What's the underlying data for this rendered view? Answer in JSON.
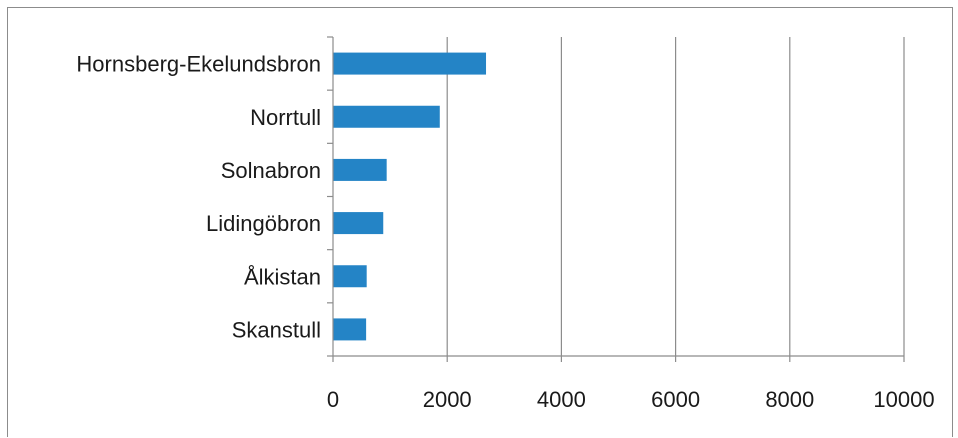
{
  "chart_data": {
    "type": "bar",
    "orientation": "horizontal",
    "categories": [
      "Hornsberg-Ekelundsbron",
      "Norrtull",
      "Solnabron",
      "Lidingöbron",
      "Ålkistan",
      "Skanstull"
    ],
    "values": [
      2680,
      1870,
      940,
      880,
      590,
      580
    ],
    "xlim": [
      0,
      10000
    ],
    "xticks": [
      "0",
      "2000",
      "4000",
      "6000",
      "8000",
      "10000"
    ],
    "title": "",
    "xlabel": "",
    "ylabel": "",
    "grid": "vertical",
    "legend": "none",
    "bar_color": "#2484C6",
    "grid_color": "#8c8c8c",
    "axis_color": "#8c8c8c"
  }
}
